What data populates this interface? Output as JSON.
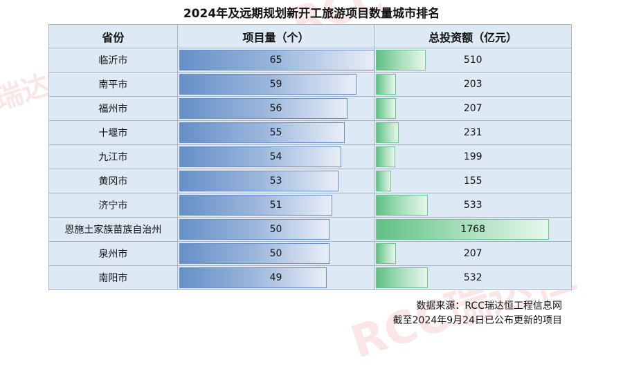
{
  "title": "2024年及远期规划新开工旅游项目数量城市排名",
  "headers": [
    "省份",
    "项目量（个）",
    "总投资额（亿元）"
  ],
  "rows": [
    {
      "city": "临沂市",
      "count": "65",
      "invest": "510"
    },
    {
      "city": "南平市",
      "count": "59",
      "invest": "203"
    },
    {
      "city": "福州市",
      "count": "56",
      "invest": "207"
    },
    {
      "city": "十堰市",
      "count": "55",
      "invest": "231"
    },
    {
      "city": "九江市",
      "count": "54",
      "invest": "199"
    },
    {
      "city": "黄冈市",
      "count": "53",
      "invest": "155"
    },
    {
      "city": "济宁市",
      "count": "51",
      "invest": "533"
    },
    {
      "city": "恩施土家族苗族自治州",
      "count": "50",
      "invest": "1768"
    },
    {
      "city": "泉州市",
      "count": "50",
      "invest": "207"
    },
    {
      "city": "南阳市",
      "count": "49",
      "invest": "532"
    }
  ],
  "footer": {
    "source": "数据来源：RCC瑞达恒工程信息网",
    "note": "截至2024年9月24日已公布更新的项目"
  },
  "watermark": {
    "brand": "RCC",
    "name": "瑞达恒"
  },
  "colors": {
    "count_bar": "#6690c8",
    "invest_bar": "#5fc084",
    "cell_bg": "#dde9f5"
  },
  "chart_data": {
    "type": "table",
    "title": "2024年及远期规划新开工旅游项目数量城市排名",
    "columns": [
      "省份",
      "项目量（个）",
      "总投资额（亿元）"
    ],
    "categories": [
      "临沂市",
      "南平市",
      "福州市",
      "十堰市",
      "九江市",
      "黄冈市",
      "济宁市",
      "恩施土家族苗族自治州",
      "泉州市",
      "南阳市"
    ],
    "series": [
      {
        "name": "项目量（个）",
        "values": [
          65,
          59,
          56,
          55,
          54,
          53,
          51,
          50,
          50,
          49
        ],
        "display": "data-bar",
        "color": "#6690c8"
      },
      {
        "name": "总投资额（亿元）",
        "values": [
          510,
          203,
          207,
          231,
          199,
          155,
          533,
          1768,
          207,
          532
        ],
        "display": "data-bar",
        "color": "#5fc084"
      }
    ],
    "annotations": [
      "数据来源：RCC瑞达恒工程信息网",
      "截至2024年9月24日已公布更新的项目"
    ]
  }
}
